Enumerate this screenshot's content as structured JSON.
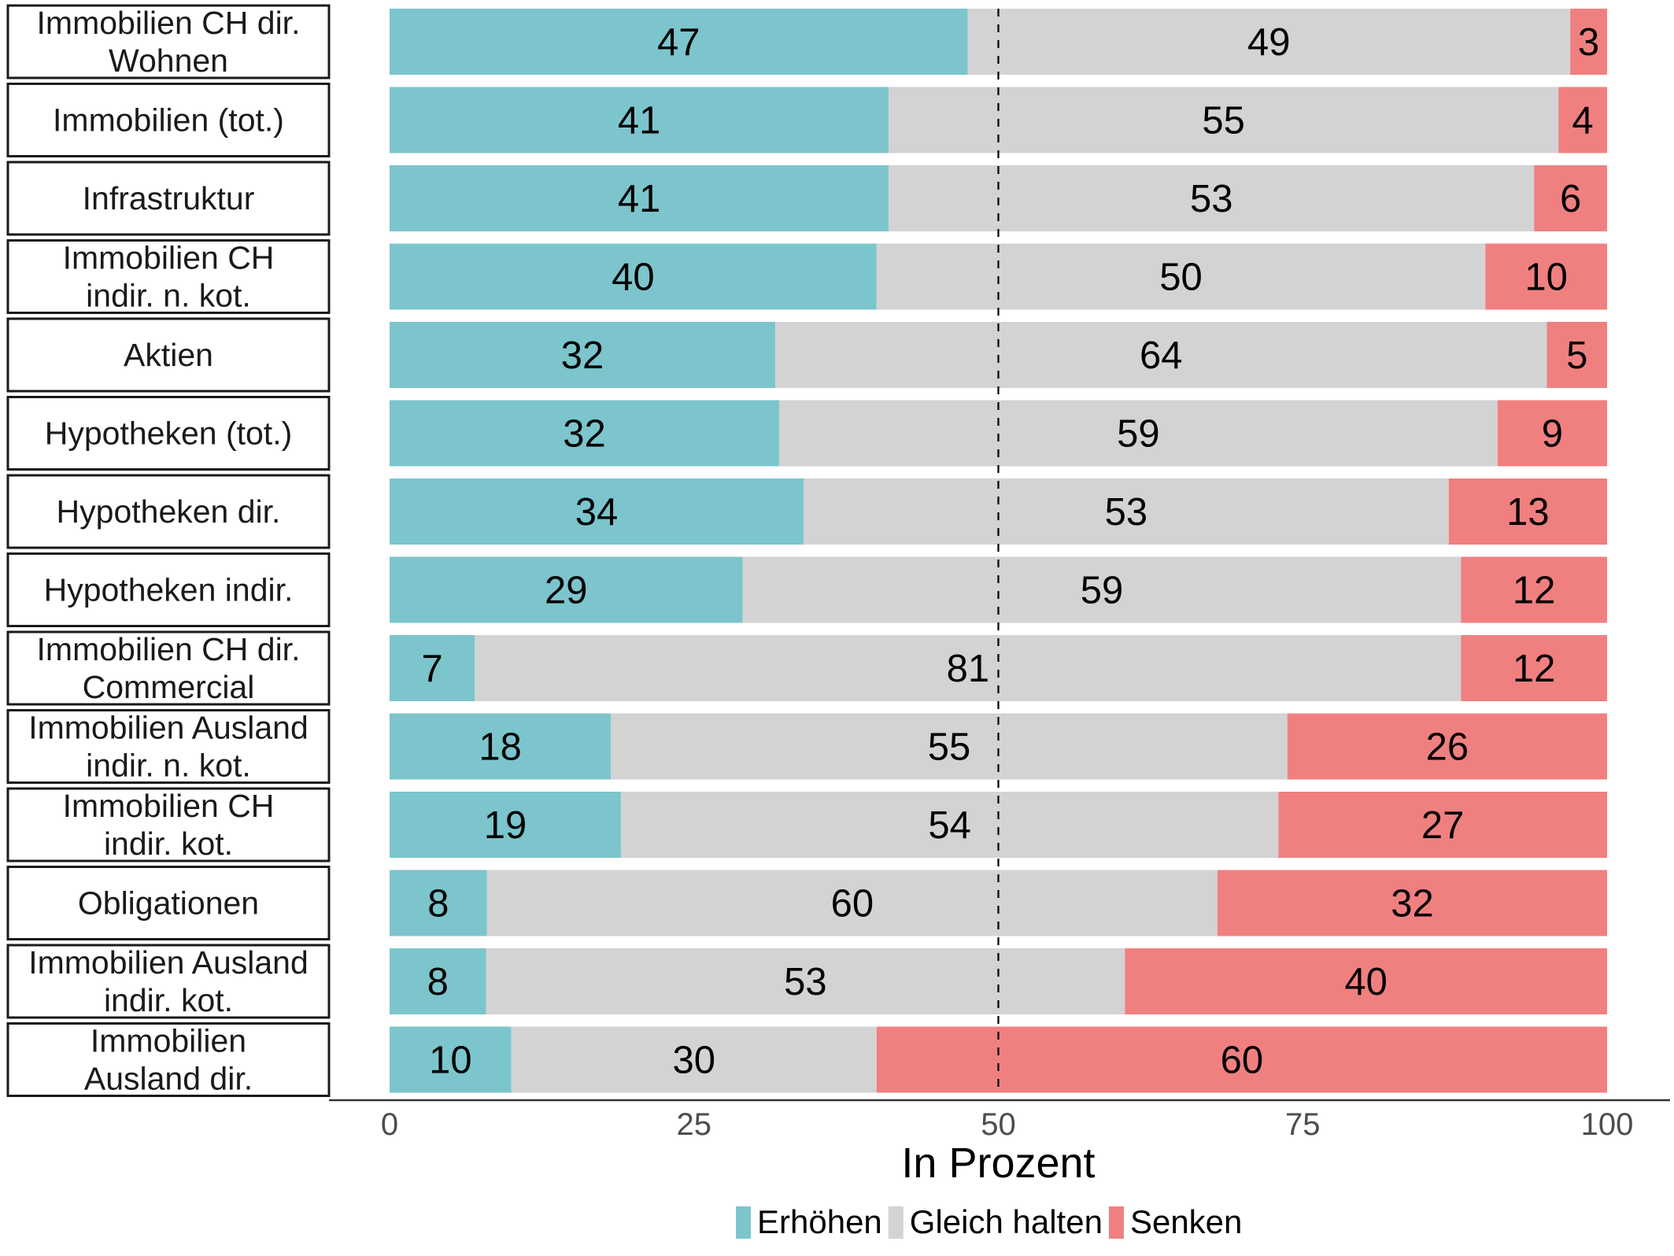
{
  "chart_data": {
    "type": "bar",
    "orientation": "horizontal",
    "stacked": true,
    "title": "",
    "xlabel": "In Prozent",
    "ylabel": "",
    "xlim": [
      0,
      100
    ],
    "xticks": [
      0,
      25,
      50,
      75,
      100
    ],
    "reference_line": {
      "x": 50,
      "style": "dashed"
    },
    "legend_position": "bottom",
    "grid": false,
    "categories": [
      [
        "Immobilien CH dir.",
        "Wohnen"
      ],
      [
        "Immobilien (tot.)"
      ],
      [
        "Infrastruktur"
      ],
      [
        "Immobilien CH",
        "indir. n. kot."
      ],
      [
        "Aktien"
      ],
      [
        "Hypotheken (tot.)"
      ],
      [
        "Hypotheken dir."
      ],
      [
        "Hypotheken indir."
      ],
      [
        "Immobilien CH dir.",
        "Commercial"
      ],
      [
        "Immobilien Ausland",
        "indir. n. kot."
      ],
      [
        "Immobilien CH",
        "indir. kot."
      ],
      [
        "Obligationen"
      ],
      [
        "Immobilien Ausland",
        "indir. kot."
      ],
      [
        "Immobilien",
        "Ausland dir."
      ]
    ],
    "series": [
      {
        "name": "Erhöhen",
        "color": "#7CC5CD",
        "values": [
          47,
          41,
          41,
          40,
          32,
          32,
          34,
          29,
          7,
          18,
          19,
          8,
          8,
          10
        ]
      },
      {
        "name": "Gleich halten",
        "color": "#D3D3D3",
        "values": [
          49,
          55,
          53,
          50,
          64,
          59,
          53,
          59,
          81,
          55,
          54,
          60,
          53,
          30
        ]
      },
      {
        "name": "Senken",
        "color": "#F08080",
        "values": [
          3,
          4,
          6,
          10,
          5,
          9,
          13,
          12,
          12,
          26,
          27,
          32,
          40,
          60
        ]
      }
    ]
  }
}
